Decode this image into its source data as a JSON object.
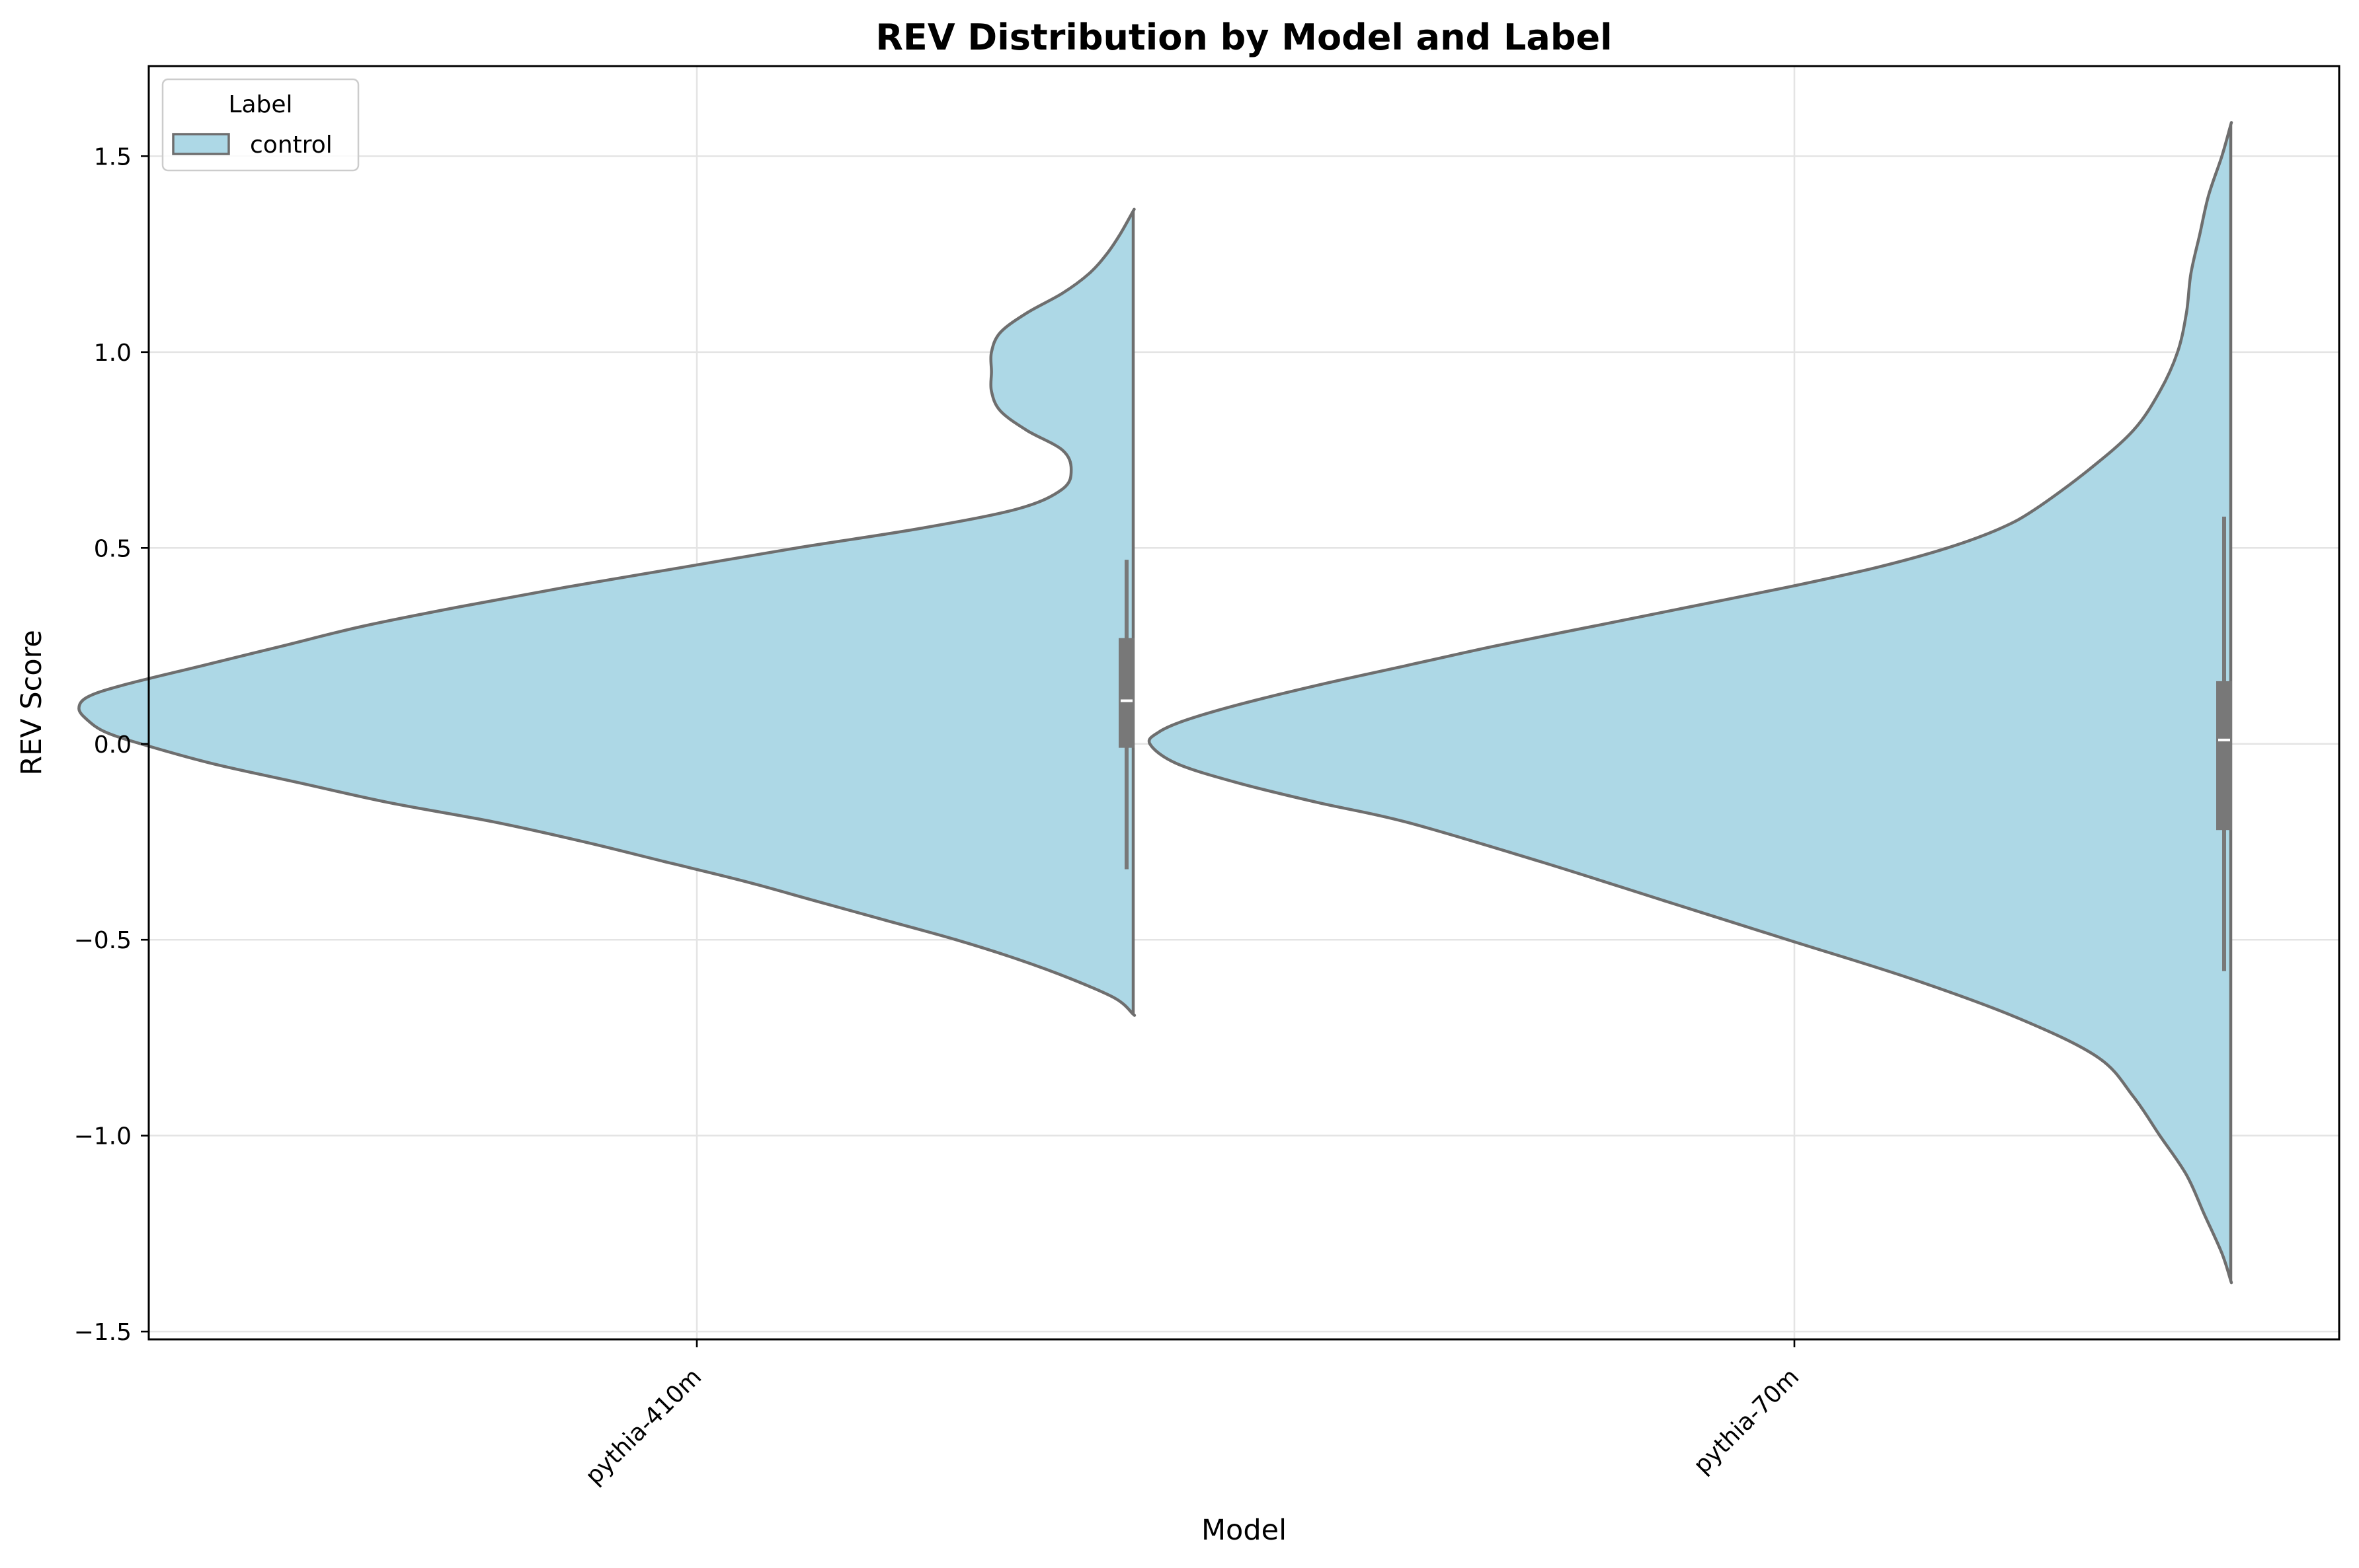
{
  "chart_data": {
    "type": "violin",
    "title": "REV Distribution by Model and Label",
    "xlabel": "Model",
    "ylabel": "REV Score",
    "categories": [
      "pythia-410m",
      "pythia-70m"
    ],
    "ylim": [
      -1.52,
      1.73
    ],
    "yticks": [
      -1.5,
      -1.0,
      -0.5,
      0.0,
      0.5,
      1.0,
      1.5
    ],
    "ytick_labels": [
      "−1.5",
      "−1.0",
      "−0.5",
      "0.0",
      "0.5",
      "1.0",
      "1.5"
    ],
    "grid": true,
    "legend": {
      "title": "Label",
      "position": "top-left",
      "entries": [
        "control"
      ]
    },
    "series": [
      {
        "name": "control",
        "color": "#add8e6",
        "edge_color": "#6e6e6e",
        "split": "left-half",
        "violins": [
          {
            "category": "pythia-410m",
            "min": -0.69,
            "max": 1.36,
            "q1": -0.01,
            "median": 0.11,
            "q3": 0.27,
            "whisker_low": -0.32,
            "whisker_high": 0.47,
            "density": [
              [
                -0.69,
                0.0
              ],
              [
                -0.65,
                0.02
              ],
              [
                -0.6,
                0.07
              ],
              [
                -0.55,
                0.13
              ],
              [
                -0.5,
                0.2
              ],
              [
                -0.45,
                0.28
              ],
              [
                -0.4,
                0.36
              ],
              [
                -0.35,
                0.44
              ],
              [
                -0.3,
                0.53
              ],
              [
                -0.25,
                0.62
              ],
              [
                -0.2,
                0.72
              ],
              [
                -0.15,
                0.84
              ],
              [
                -0.1,
                0.94
              ],
              [
                -0.05,
                1.04
              ],
              [
                0.0,
                1.12
              ],
              [
                0.03,
                1.16
              ],
              [
                0.06,
                1.18
              ],
              [
                0.09,
                1.19
              ],
              [
                0.12,
                1.18
              ],
              [
                0.15,
                1.14
              ],
              [
                0.2,
                1.05
              ],
              [
                0.25,
                0.96
              ],
              [
                0.3,
                0.87
              ],
              [
                0.35,
                0.76
              ],
              [
                0.4,
                0.64
              ],
              [
                0.45,
                0.51
              ],
              [
                0.5,
                0.38
              ],
              [
                0.55,
                0.24
              ],
              [
                0.6,
                0.13
              ],
              [
                0.65,
                0.08
              ],
              [
                0.7,
                0.07
              ],
              [
                0.75,
                0.08
              ],
              [
                0.8,
                0.12
              ],
              [
                0.85,
                0.15
              ],
              [
                0.9,
                0.16
              ],
              [
                0.95,
                0.16
              ],
              [
                1.0,
                0.16
              ],
              [
                1.05,
                0.15
              ],
              [
                1.1,
                0.12
              ],
              [
                1.15,
                0.08
              ],
              [
                1.2,
                0.05
              ],
              [
                1.25,
                0.03
              ],
              [
                1.3,
                0.015
              ],
              [
                1.36,
                0.0
              ]
            ]
          },
          {
            "category": "pythia-70m",
            "min": -1.37,
            "max": 1.58,
            "q1": -0.22,
            "median": 0.01,
            "q3": 0.16,
            "whisker_low": -0.58,
            "whisker_high": 0.58,
            "density": [
              [
                -1.37,
                0.0
              ],
              [
                -1.3,
                0.01
              ],
              [
                -1.2,
                0.03
              ],
              [
                -1.1,
                0.05
              ],
              [
                -1.0,
                0.08
              ],
              [
                -0.9,
                0.11
              ],
              [
                -0.8,
                0.15
              ],
              [
                -0.7,
                0.24
              ],
              [
                -0.6,
                0.36
              ],
              [
                -0.5,
                0.5
              ],
              [
                -0.4,
                0.64
              ],
              [
                -0.3,
                0.78
              ],
              [
                -0.2,
                0.93
              ],
              [
                -0.15,
                1.03
              ],
              [
                -0.1,
                1.12
              ],
              [
                -0.05,
                1.19
              ],
              [
                0.0,
                1.22
              ],
              [
                0.03,
                1.21
              ],
              [
                0.06,
                1.18
              ],
              [
                0.1,
                1.12
              ],
              [
                0.15,
                1.03
              ],
              [
                0.2,
                0.93
              ],
              [
                0.25,
                0.83
              ],
              [
                0.3,
                0.72
              ],
              [
                0.35,
                0.61
              ],
              [
                0.4,
                0.5
              ],
              [
                0.45,
                0.4
              ],
              [
                0.5,
                0.32
              ],
              [
                0.55,
                0.26
              ],
              [
                0.6,
                0.22
              ],
              [
                0.7,
                0.16
              ],
              [
                0.8,
                0.11
              ],
              [
                0.9,
                0.08
              ],
              [
                1.0,
                0.06
              ],
              [
                1.1,
                0.05
              ],
              [
                1.2,
                0.045
              ],
              [
                1.3,
                0.035
              ],
              [
                1.4,
                0.025
              ],
              [
                1.5,
                0.01
              ],
              [
                1.58,
                0.0
              ]
            ]
          }
        ]
      }
    ]
  }
}
